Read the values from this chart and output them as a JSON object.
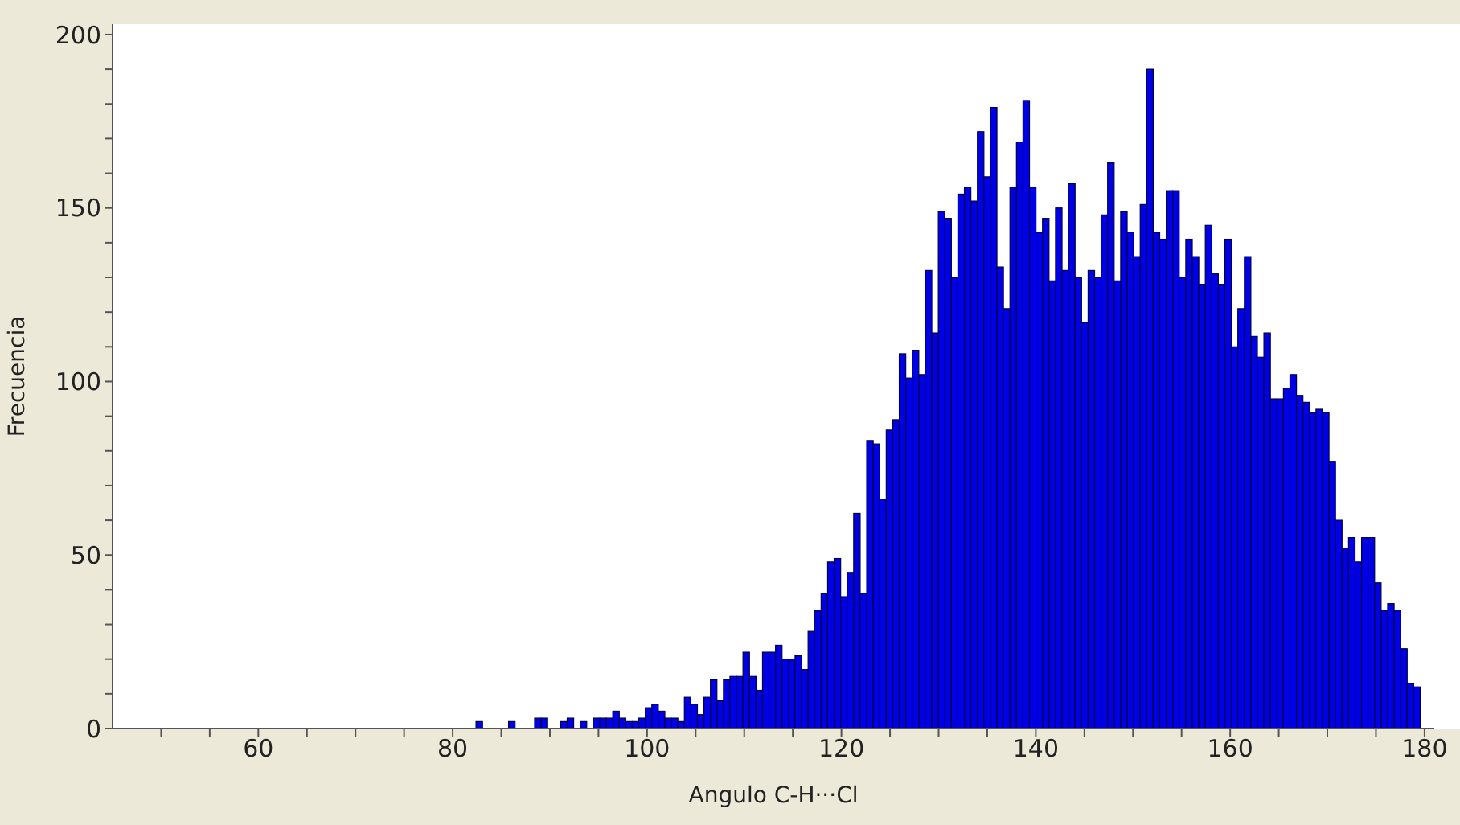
{
  "chart_data": {
    "type": "histogram",
    "xlabel": "Angulo C-H···Cl",
    "ylabel": "Frecuencia",
    "color": "#0000e6",
    "bins": [
      82.4,
      83.07,
      83.74,
      84.41,
      85.08,
      85.75,
      86.42,
      87.09,
      87.76,
      88.43,
      89.1,
      89.77,
      90.44,
      91.11,
      91.78,
      92.45,
      93.12,
      93.79,
      94.46,
      95.13,
      95.8,
      96.47,
      97.14,
      97.81,
      98.48,
      99.15,
      99.82,
      100.49,
      101.16,
      101.83,
      102.5,
      103.17,
      103.84,
      104.51,
      105.18,
      105.85,
      106.52,
      107.19,
      107.86,
      108.53,
      109.2,
      109.87,
      110.54,
      111.21,
      111.88,
      112.55,
      113.22,
      113.89,
      114.56,
      115.23,
      115.9,
      116.57,
      117.24,
      117.91,
      118.58,
      119.25,
      119.92,
      120.59,
      121.26,
      121.93,
      122.6,
      123.27,
      123.94,
      124.61,
      125.28,
      125.95,
      126.62,
      127.29,
      127.96,
      128.63,
      129.3,
      129.97,
      130.64,
      131.31,
      131.98,
      132.65,
      133.32,
      133.99,
      134.66,
      135.33,
      136,
      136.67,
      137.34,
      138.01,
      138.68,
      139.35,
      140.02,
      140.69,
      141.36,
      142.03,
      142.7,
      143.37,
      144.04,
      144.71,
      145.38,
      146.05,
      146.72,
      147.39,
      148.06,
      148.73,
      149.4,
      150.07,
      150.74,
      151.41,
      152.08,
      152.75,
      153.42,
      154.09,
      154.76,
      155.43,
      156.1,
      156.77,
      157.44,
      158.11,
      158.78,
      159.45,
      160.12,
      160.79,
      161.46,
      162.13,
      162.8,
      163.47,
      164.14,
      164.81,
      165.48,
      166.15,
      166.82,
      167.49,
      168.16,
      168.83,
      169.5,
      170.17,
      170.84,
      171.51,
      172.18,
      172.85,
      173.52,
      174.19,
      174.86,
      175.53,
      176.2,
      176.87,
      177.54,
      178.21,
      178.88,
      179.55
    ],
    "values": [
      2,
      0,
      0,
      0,
      0,
      2,
      0,
      0,
      0,
      3,
      3,
      0,
      0,
      2,
      3,
      0,
      2,
      0,
      3,
      3,
      3,
      5,
      3,
      2,
      2,
      3,
      6,
      7,
      5,
      3,
      3,
      2,
      9,
      7,
      4,
      9,
      14,
      8,
      14,
      15,
      15,
      22,
      15,
      11,
      22,
      22,
      24,
      20,
      20,
      21,
      17,
      28,
      34,
      39,
      48,
      49,
      38,
      45,
      62,
      39,
      83,
      82,
      66,
      86,
      89,
      108,
      101,
      109,
      102,
      132,
      114,
      149,
      147,
      130,
      154,
      156,
      152,
      172,
      159,
      179,
      133,
      121,
      156,
      169,
      181,
      156,
      143,
      147,
      129,
      150,
      132,
      157,
      130,
      117,
      132,
      130,
      148,
      163,
      129,
      149,
      143,
      136,
      151,
      190,
      143,
      141,
      155,
      155,
      130,
      141,
      136,
      128,
      145,
      131,
      128,
      141,
      110,
      121,
      136,
      113,
      107,
      114,
      95,
      95,
      98,
      102,
      96,
      94,
      91,
      92,
      91,
      77,
      60,
      52,
      55,
      48,
      55,
      55,
      42,
      34,
      36,
      34,
      23,
      13,
      12
    ],
    "xlim": [
      45,
      181
    ],
    "xticks": [
      {
        "value": 50,
        "label": null
      },
      {
        "value": 55,
        "label": null
      },
      60,
      {
        "value": 65,
        "label": null
      },
      {
        "value": 70,
        "label": null
      },
      {
        "value": 75,
        "label": null
      },
      80,
      {
        "value": 85,
        "label": null
      },
      {
        "value": 90,
        "label": null
      },
      {
        "value": 95,
        "label": null
      },
      100,
      {
        "value": 105,
        "label": null
      },
      {
        "value": 110,
        "label": null
      },
      {
        "value": 115,
        "label": null
      },
      120,
      {
        "value": 125,
        "label": null
      },
      {
        "value": 130,
        "label": null
      },
      {
        "value": 135,
        "label": null
      },
      140,
      {
        "value": 145,
        "label": null
      },
      {
        "value": 150,
        "label": null
      },
      {
        "value": 155,
        "label": null
      },
      160,
      {
        "value": 165,
        "label": null
      },
      {
        "value": 170,
        "label": null
      },
      {
        "value": 175,
        "label": null
      },
      180
    ],
    "ylim": [
      0,
      203
    ],
    "yticks": [
      0,
      {
        "value": 10,
        "label": null
      },
      {
        "value": 20,
        "label": null
      },
      {
        "value": 30,
        "label": null
      },
      {
        "value": 40,
        "label": null
      },
      50,
      {
        "value": 60,
        "label": null
      },
      {
        "value": 70,
        "label": null
      },
      {
        "value": 80,
        "label": null
      },
      {
        "value": 90,
        "label": null
      },
      100,
      {
        "value": 110,
        "label": null
      },
      {
        "value": 120,
        "label": null
      },
      {
        "value": 130,
        "label": null
      },
      {
        "value": 140,
        "label": null
      },
      150,
      {
        "value": 160,
        "label": null
      },
      {
        "value": 170,
        "label": null
      },
      {
        "value": 180,
        "label": null
      },
      {
        "value": 190,
        "label": null
      },
      200
    ]
  }
}
